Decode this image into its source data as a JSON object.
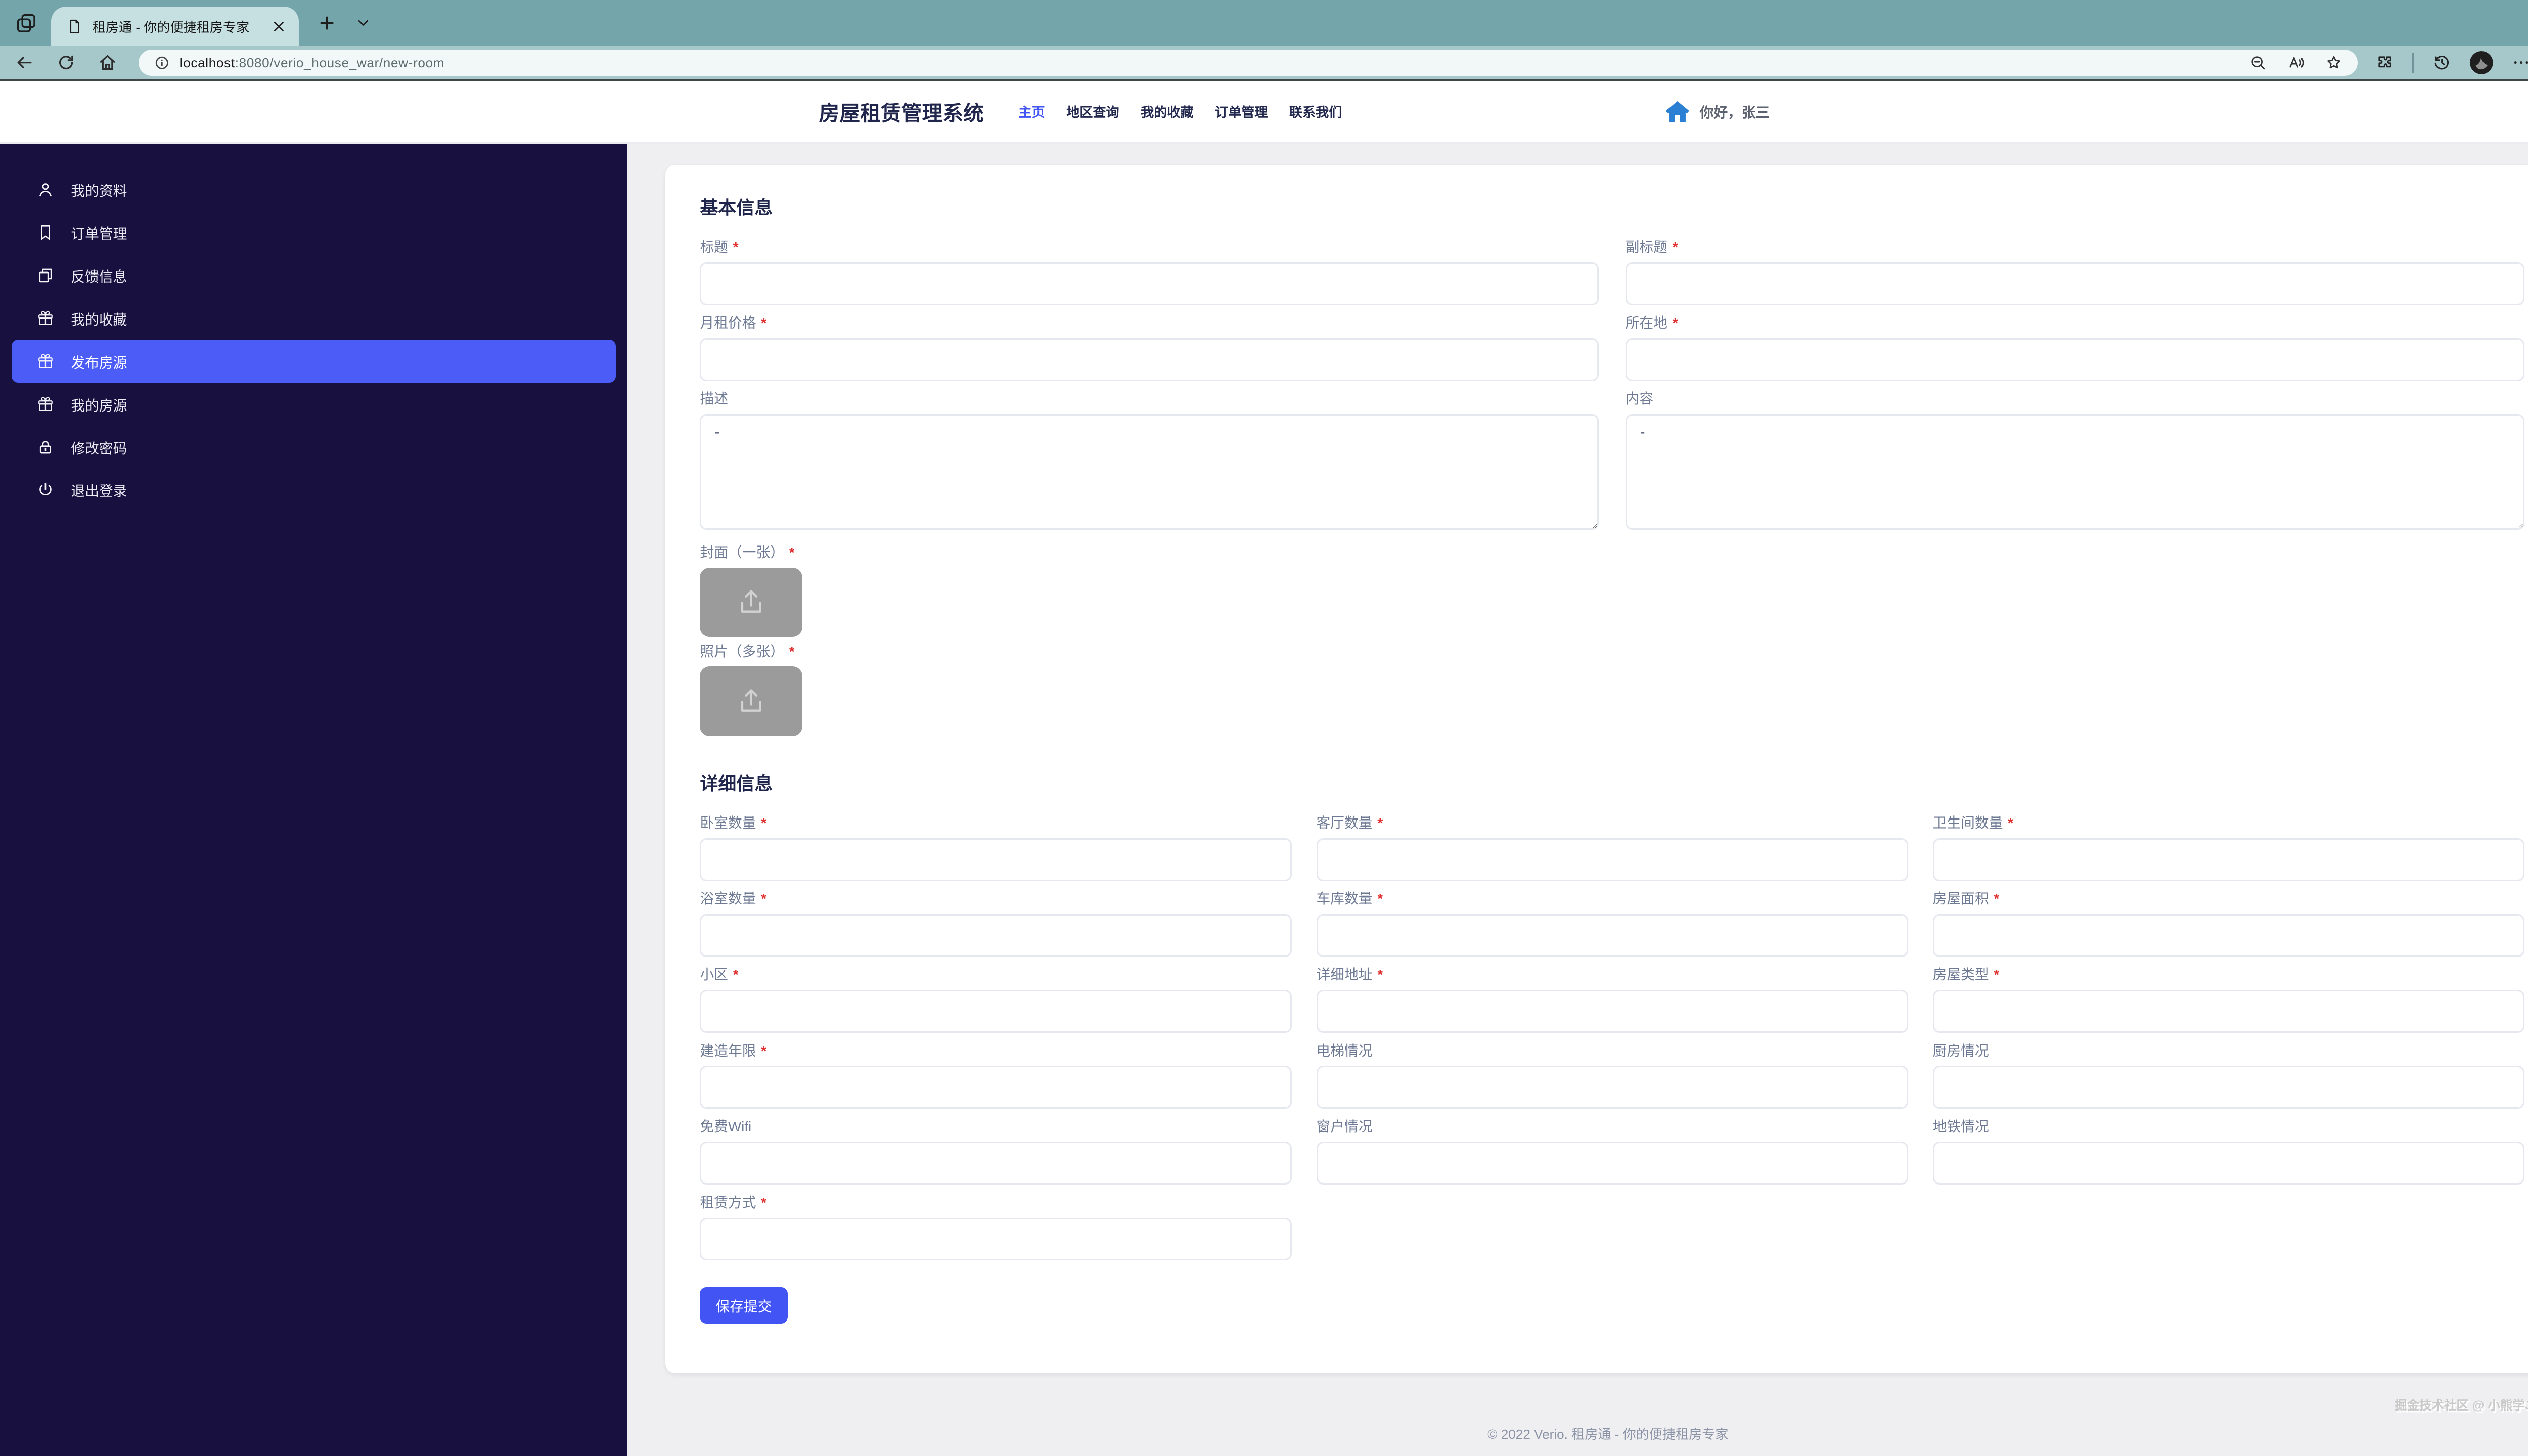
{
  "browser": {
    "tab": {
      "title": "租房通 - 你的便捷租房专家"
    },
    "url": {
      "host": "localhost",
      "path": ":8080/verio_house_war/new-room"
    }
  },
  "header": {
    "title": "房屋租赁管理系统",
    "nav": [
      {
        "label": "主页",
        "active": true
      },
      {
        "label": "地区查询",
        "active": false
      },
      {
        "label": "我的收藏",
        "active": false
      },
      {
        "label": "订单管理",
        "active": false
      },
      {
        "label": "联系我们",
        "active": false
      }
    ],
    "greeting": "你好，张三"
  },
  "sidebar": {
    "items": [
      {
        "label": "我的资料",
        "icon": "user-icon",
        "active": false
      },
      {
        "label": "订单管理",
        "icon": "bookmark-icon",
        "active": false
      },
      {
        "label": "反馈信息",
        "icon": "copy-icon",
        "active": false
      },
      {
        "label": "我的收藏",
        "icon": "gift-icon",
        "active": false
      },
      {
        "label": "发布房源",
        "icon": "gift-icon",
        "active": true
      },
      {
        "label": "我的房源",
        "icon": "gift-icon",
        "active": false
      },
      {
        "label": "修改密码",
        "icon": "lock-icon",
        "active": false
      },
      {
        "label": "退出登录",
        "icon": "power-icon",
        "active": false
      }
    ]
  },
  "form": {
    "basic": {
      "heading": "基本信息",
      "rows": [
        [
          {
            "label": "标题",
            "required": true,
            "kind": "text",
            "value": ""
          },
          {
            "label": "副标题",
            "required": true,
            "kind": "text",
            "value": ""
          }
        ],
        [
          {
            "label": "月租价格",
            "required": true,
            "kind": "text",
            "value": ""
          },
          {
            "label": "所在地",
            "required": true,
            "kind": "text",
            "value": ""
          }
        ],
        [
          {
            "label": "描述",
            "required": false,
            "kind": "textarea",
            "value": "-"
          },
          {
            "label": "内容",
            "required": false,
            "kind": "textarea",
            "value": "-"
          }
        ]
      ],
      "uploads": [
        {
          "label": "封面（一张）",
          "required": true,
          "icon": "upload-icon"
        },
        {
          "label": "照片（多张）",
          "required": true,
          "icon": "upload-icon"
        }
      ]
    },
    "details": {
      "heading": "详细信息",
      "rows": [
        [
          {
            "label": "卧室数量",
            "required": true
          },
          {
            "label": "客厅数量",
            "required": true
          },
          {
            "label": "卫生间数量",
            "required": true
          }
        ],
        [
          {
            "label": "浴室数量",
            "required": true
          },
          {
            "label": "车库数量",
            "required": true
          },
          {
            "label": "房屋面积",
            "required": true
          }
        ],
        [
          {
            "label": "小区",
            "required": true
          },
          {
            "label": "详细地址",
            "required": true
          },
          {
            "label": "房屋类型",
            "required": true
          }
        ],
        [
          {
            "label": "建造年限",
            "required": true
          },
          {
            "label": "电梯情况",
            "required": false
          },
          {
            "label": "厨房情况",
            "required": false
          }
        ],
        [
          {
            "label": "免费Wifi",
            "required": false
          },
          {
            "label": "窗户情况",
            "required": false
          },
          {
            "label": "地铁情况",
            "required": false
          }
        ],
        [
          {
            "label": "租赁方式",
            "required": true
          }
        ]
      ]
    },
    "submit_label": "保存提交"
  },
  "footer": {
    "watermark": "掘金技术社区 @ 小熊学Java",
    "copyright": "© 2022 Verio. 租房通 - 你的便捷租房专家"
  },
  "colors": {
    "accent_blue": "#4254f3",
    "sidebar_bg": "#181140",
    "sidebar_active": "#4b5cf7",
    "chrome_teal": "#73a5ab",
    "required_red": "#e03131",
    "header_navy": "#20254c"
  }
}
